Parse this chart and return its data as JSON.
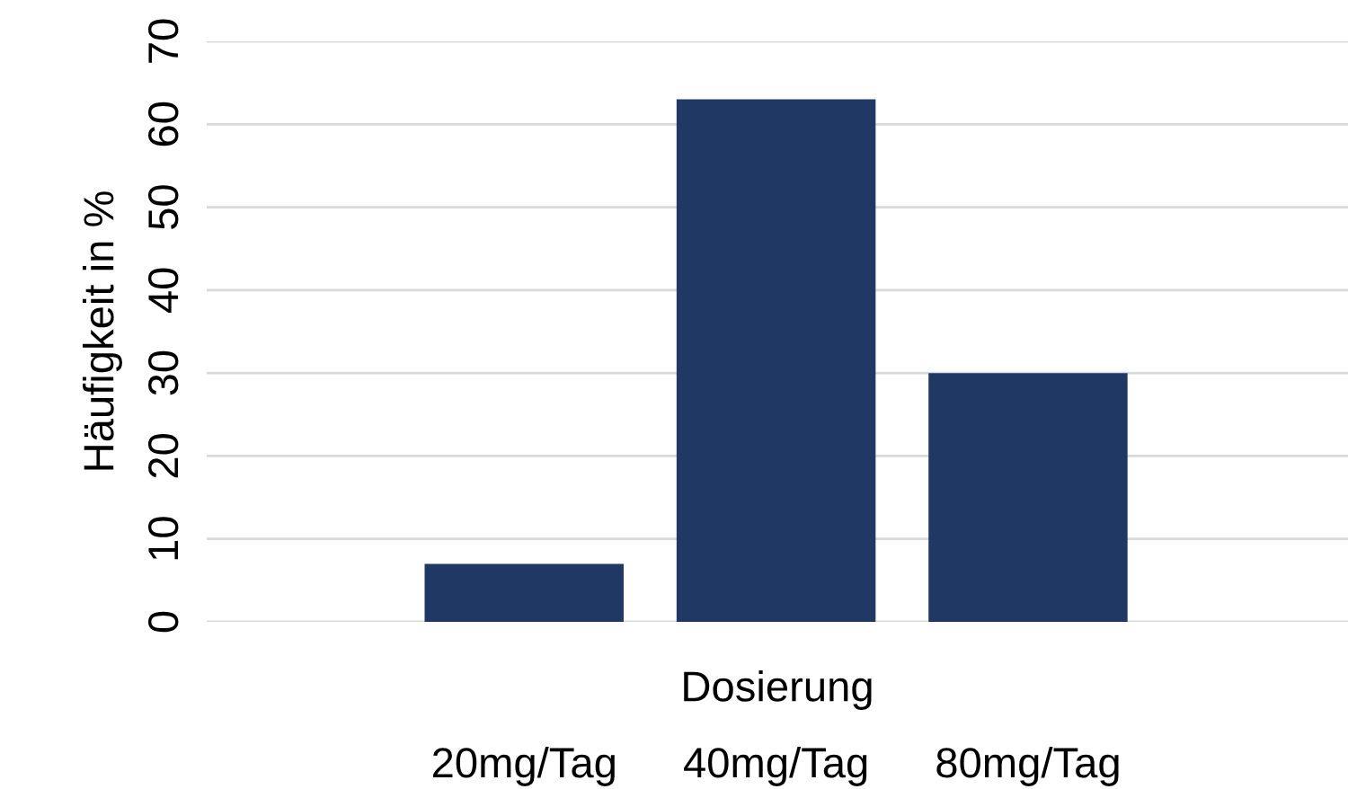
{
  "chart_data": {
    "type": "bar",
    "xlabel": "Dosierung",
    "ylabel": "Häufigkeit in %",
    "categories": [
      "20mg/Tag",
      "40mg/Tag",
      "80mg/Tag"
    ],
    "values": [
      7,
      63,
      30
    ],
    "color": "#203864",
    "ylim": [
      0,
      70
    ],
    "yticks": [
      0,
      10,
      20,
      30,
      40,
      50,
      60,
      70
    ],
    "grid": "y",
    "legend": false
  }
}
